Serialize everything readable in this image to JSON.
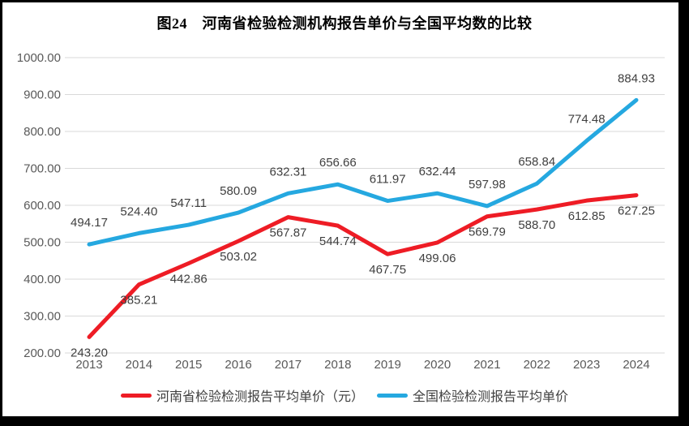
{
  "chart_data": {
    "type": "line",
    "title": "图24　河南省检验检测机构报告单价与全国平均数的比较",
    "categories": [
      "2013",
      "2014",
      "2015",
      "2016",
      "2017",
      "2018",
      "2019",
      "2020",
      "2021",
      "2022",
      "2023",
      "2024"
    ],
    "series": [
      {
        "name": "河南省检验检测报告平均单价（元）",
        "color": "#ee1c25",
        "label_position": "below",
        "values": [
          243.2,
          385.21,
          442.86,
          503.02,
          567.87,
          544.74,
          467.75,
          499.06,
          569.79,
          588.7,
          612.85,
          627.25
        ]
      },
      {
        "name": "全国检验检测报告平均单价",
        "color": "#25a8e0",
        "label_position": "above",
        "values": [
          494.17,
          524.4,
          547.11,
          580.09,
          632.31,
          656.66,
          611.97,
          632.44,
          597.98,
          658.84,
          774.48,
          884.93
        ]
      }
    ],
    "y_axis": {
      "min": 200,
      "max": 1000,
      "step": 100,
      "tick_labels": [
        "200.00",
        "300.00",
        "400.00",
        "500.00",
        "600.00",
        "700.00",
        "800.00",
        "900.00",
        "1000.00"
      ]
    },
    "xlabel": "",
    "ylabel": "",
    "grid": "horizontal",
    "data_labels": true,
    "legend_position": "bottom",
    "colors": {
      "gridline": "#d9d9d9",
      "tick_text": "#595959",
      "data_label_text": "#3f3f3f",
      "title_text": "#000000",
      "frame_border": "#000000",
      "background": "#ffffff"
    }
  }
}
